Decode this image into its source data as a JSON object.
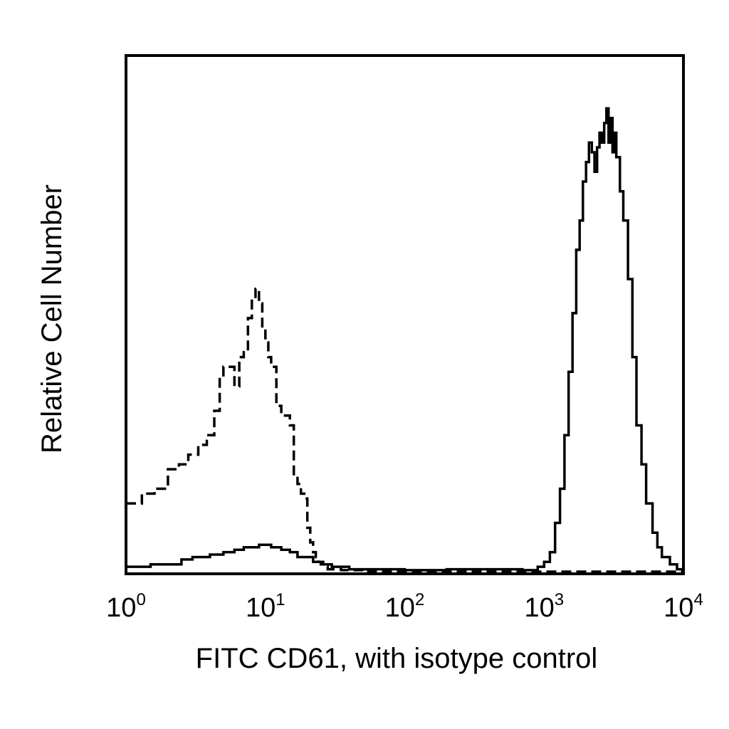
{
  "chart_data": {
    "type": "line",
    "xlabel": "FITC CD61, with isotype control",
    "ylabel": "Relative Cell Number",
    "xscale": "log",
    "xlim": [
      1,
      10000
    ],
    "ylim": [
      0,
      100
    ],
    "grid": false,
    "x_ticks": [
      {
        "base": "10",
        "exp": "0"
      },
      {
        "base": "10",
        "exp": "1"
      },
      {
        "base": "10",
        "exp": "2"
      },
      {
        "base": "10",
        "exp": "3"
      },
      {
        "base": "10",
        "exp": "4"
      }
    ],
    "series": [
      {
        "style": "dashed",
        "x": [
          1.0,
          1.3,
          1.6,
          2.0,
          2.4,
          2.8,
          3.3,
          3.8,
          4.3,
          4.7,
          5.0,
          5.5,
          6.0,
          6.5,
          7.0,
          7.5,
          8.0,
          8.5,
          9.0,
          9.5,
          10.0,
          10.5,
          11.0,
          12.0,
          13.0,
          14.0,
          15.0,
          16.0,
          17.0,
          18.0,
          19.0,
          20.0,
          21.0,
          22.0,
          23.0,
          24.0,
          26.0,
          28.0,
          30.0,
          35.0,
          40.0,
          50.0,
          70.0,
          100.0,
          200.0,
          500.0,
          1000.0,
          3000.0,
          10000.0
        ],
        "y": [
          14,
          16,
          17,
          21,
          22,
          24,
          26,
          28,
          33,
          40,
          42,
          42,
          38,
          44,
          45,
          52,
          56,
          58,
          55,
          50,
          47,
          44,
          42,
          34,
          32,
          32,
          30,
          20,
          18,
          16,
          15,
          9,
          6,
          4,
          3,
          2,
          1,
          0.5,
          0.5,
          0.3,
          0.3,
          0,
          0,
          0,
          0,
          0,
          0,
          0,
          0
        ]
      },
      {
        "style": "solid",
        "x": [
          1.0,
          1.5,
          2.0,
          2.5,
          3.0,
          4.0,
          5.0,
          6.0,
          7.0,
          8.0,
          9.0,
          10.0,
          11.0,
          12.0,
          13.0,
          15.0,
          17.0,
          19.0,
          22.0,
          25.0,
          30.0,
          40.0,
          60.0,
          100.0,
          200.0,
          400.0,
          700.0,
          900.0,
          1000.0,
          1100.0,
          1200.0,
          1300.0,
          1400.0,
          1500.0,
          1600.0,
          1700.0,
          1800.0,
          1900.0,
          2000.0,
          2100.0,
          2200.0,
          2300.0,
          2400.0,
          2500.0,
          2600.0,
          2700.0,
          2800.0,
          2900.0,
          3000.0,
          3100.0,
          3200.0,
          3300.0,
          3500.0,
          3700.0,
          4000.0,
          4300.0,
          4600.0,
          5000.0,
          5400.0,
          6000.0,
          6500.0,
          7000.0,
          8000.0,
          9000.0,
          10000.0
        ],
        "y": [
          1,
          1.5,
          1.5,
          2.5,
          3,
          3.5,
          4,
          4.5,
          5,
          5,
          5.5,
          5.5,
          5,
          5,
          4.5,
          4,
          3,
          3,
          2,
          1.5,
          1,
          0.5,
          0.5,
          0.3,
          0.5,
          0.5,
          0.3,
          1,
          2,
          4,
          10,
          17,
          28,
          41,
          53,
          66,
          72,
          80,
          84,
          88,
          86,
          82,
          87,
          90,
          88,
          92,
          95,
          88,
          93,
          86,
          90,
          85,
          78,
          72,
          60,
          44,
          30,
          22,
          14,
          8,
          5,
          3,
          1.5,
          0.5,
          0
        ]
      }
    ]
  }
}
